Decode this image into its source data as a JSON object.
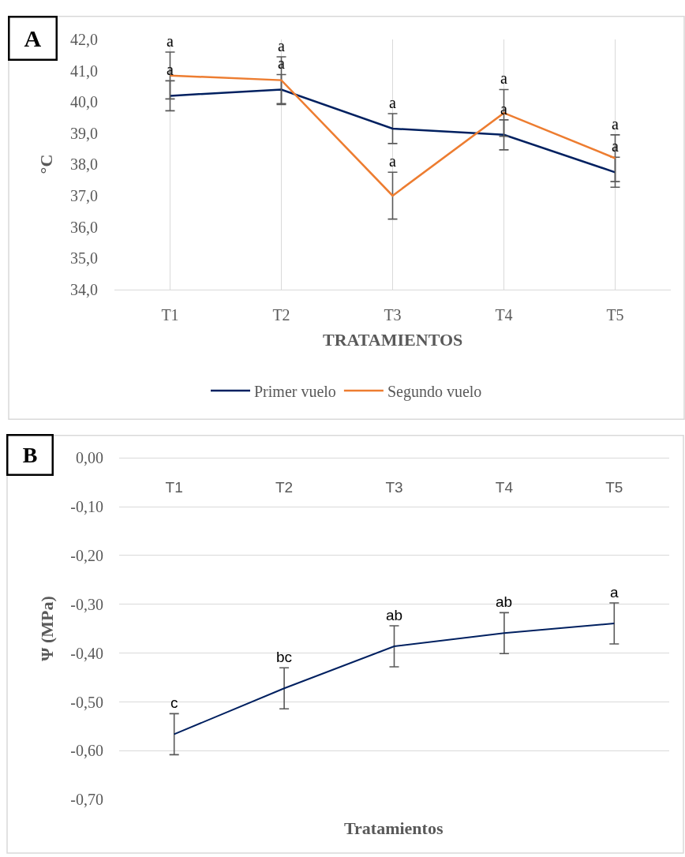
{
  "chart_data": [
    {
      "type": "line",
      "title": "A",
      "xlabel": "TRATAMIENTOS",
      "ylabel": "°C",
      "categories": [
        "T1",
        "T2",
        "T3",
        "T4",
        "T5"
      ],
      "series": [
        {
          "name": "Primer vuelo",
          "color": "#002060",
          "values": [
            40.2,
            40.4,
            39.15,
            38.95,
            37.75
          ],
          "errors": [
            0.48,
            0.48,
            0.48,
            0.48,
            0.48
          ]
        },
        {
          "name": "Segundo vuelo",
          "color": "#ed7d31",
          "values": [
            40.85,
            40.7,
            37.0,
            39.65,
            38.2
          ],
          "errors": [
            0.75,
            0.75,
            0.75,
            0.75,
            0.75
          ]
        }
      ],
      "ylim": [
        34,
        42
      ],
      "yticks": [
        {
          "value": 34,
          "label": "34,0"
        },
        {
          "value": 35,
          "label": "35,0"
        },
        {
          "value": 36,
          "label": "36,0"
        },
        {
          "value": 37,
          "label": "37,0"
        },
        {
          "value": 38,
          "label": "38,0"
        },
        {
          "value": 39,
          "label": "39,0"
        },
        {
          "value": 40,
          "label": "40,0"
        },
        {
          "value": 41,
          "label": "41,0"
        },
        {
          "value": 42,
          "label": "42,0"
        }
      ],
      "grid": "x",
      "legend": "bottom",
      "annotations": [
        {
          "text": "a",
          "x": "T1",
          "y": 40.68
        },
        {
          "text": "a",
          "x": "T2",
          "y": 40.88
        },
        {
          "text": "a",
          "x": "T3",
          "y": 39.63
        },
        {
          "text": "a",
          "x": "T4",
          "y": 39.43
        },
        {
          "text": "a",
          "x": "T5",
          "y": 38.23
        },
        {
          "text": "a",
          "x": "T1",
          "y": 41.6
        },
        {
          "text": "a",
          "x": "T2",
          "y": 41.45
        },
        {
          "text": "a",
          "x": "T3",
          "y": 37.75
        },
        {
          "text": "a",
          "x": "T4",
          "y": 40.4
        },
        {
          "text": "a",
          "x": "T5",
          "y": 38.95
        }
      ]
    },
    {
      "type": "line",
      "title": "B",
      "xlabel": "Tratamientos",
      "ylabel": "Ψ (MPa)",
      "categories": [
        "T1",
        "T2",
        "T3",
        "T4",
        "T5"
      ],
      "series": [
        {
          "color": "#002060",
          "values": [
            -0.566,
            -0.472,
            -0.386,
            -0.359,
            -0.339
          ],
          "errors": [
            0.042,
            0.042,
            0.042,
            0.042,
            0.042
          ]
        }
      ],
      "ylim": [
        -0.7,
        0
      ],
      "yticks": [
        {
          "value": -0.7,
          "label": "-0,70"
        },
        {
          "value": -0.6,
          "label": "-0,60"
        },
        {
          "value": -0.5,
          "label": "-0,50"
        },
        {
          "value": -0.4,
          "label": "-0,40"
        },
        {
          "value": -0.3,
          "label": "-0,30"
        },
        {
          "value": -0.2,
          "label": "-0,20"
        },
        {
          "value": -0.1,
          "label": "-0,10"
        },
        {
          "value": 0,
          "label": "0,00"
        }
      ],
      "grid": "y",
      "annotations": [
        {
          "text": "c",
          "x": "T1",
          "y": -0.524
        },
        {
          "text": "bc",
          "x": "T2",
          "y": -0.43
        },
        {
          "text": "ab",
          "x": "T3",
          "y": -0.344
        },
        {
          "text": "ab",
          "x": "T4",
          "y": -0.317
        },
        {
          "text": "a",
          "x": "T5",
          "y": -0.297
        }
      ]
    }
  ]
}
